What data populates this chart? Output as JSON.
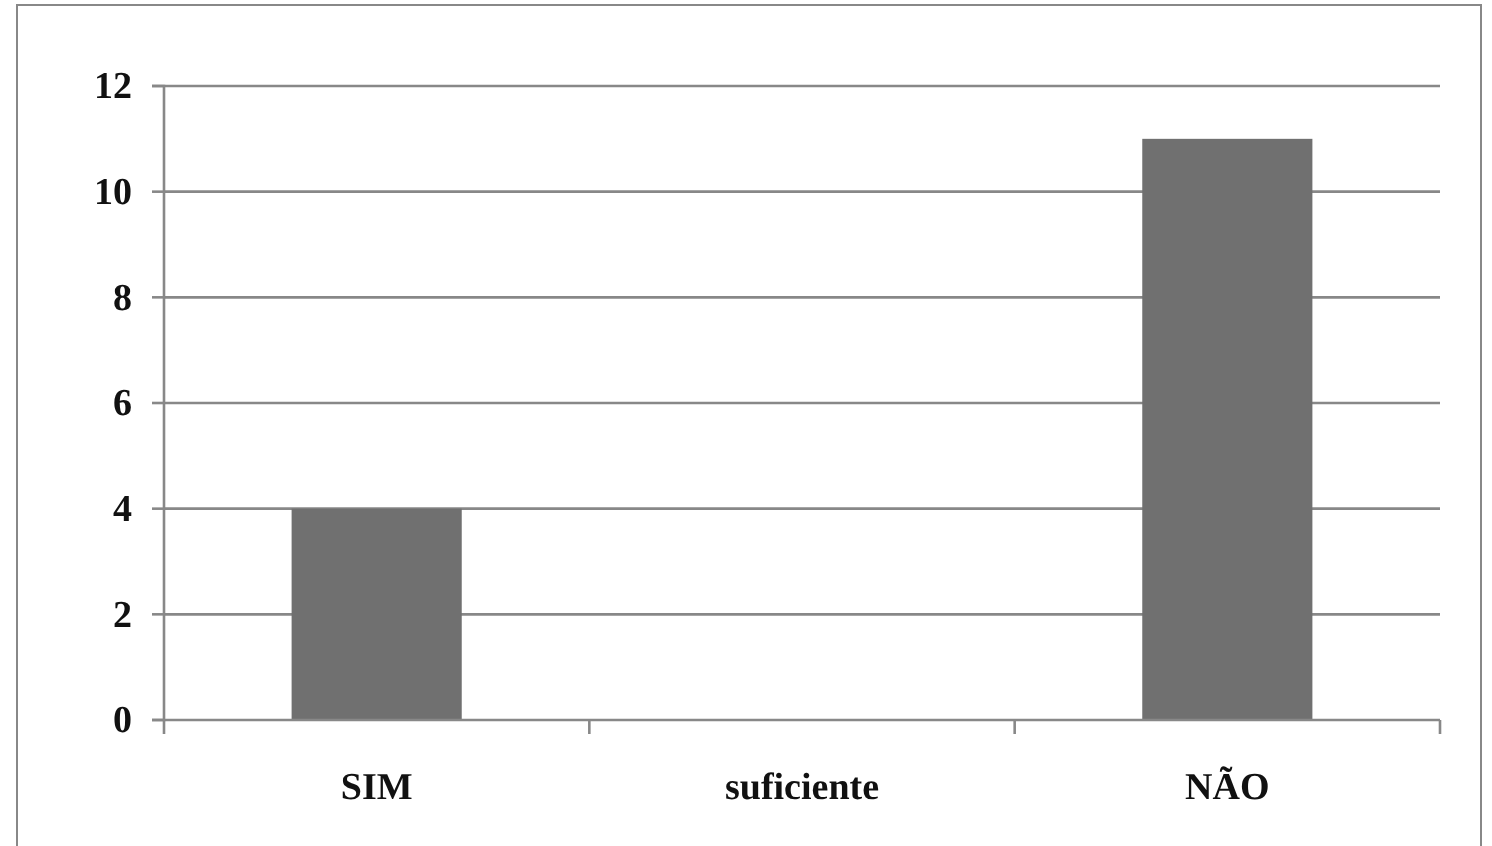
{
  "chart_data": {
    "type": "bar",
    "categories": [
      "SIM",
      "suficiente",
      "NÃO"
    ],
    "values": [
      4,
      0,
      11
    ],
    "color": "#707070",
    "ylim": [
      0,
      12
    ],
    "yticks": [
      0,
      2,
      4,
      6,
      8,
      10,
      12
    ],
    "grid": "y"
  }
}
